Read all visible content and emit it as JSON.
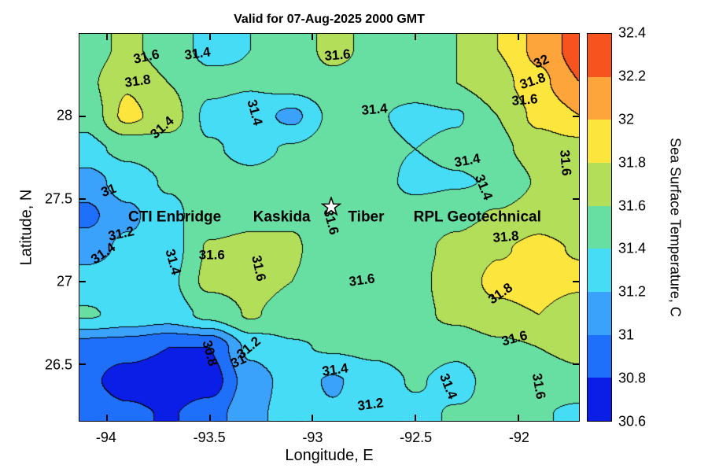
{
  "figure": {
    "background": "#ffffff"
  },
  "chart_data": {
    "type": "heatmap",
    "variant": "filled-contour-map",
    "title": "Valid for 07-Aug-2025 2000 GMT",
    "xlabel": "Longitude, E",
    "ylabel": "Latitude, N",
    "xlim": [
      -94.133,
      -91.706
    ],
    "ylim": [
      26.16,
      28.497
    ],
    "xticks": [
      "-94",
      "-93.5",
      "-93",
      "-92.5",
      "-92"
    ],
    "xtick_values": [
      -94,
      -93.5,
      -93,
      -92.5,
      -92
    ],
    "yticks": [
      "26.5",
      "27",
      "27.5",
      "28"
    ],
    "ytick_values": [
      26.5,
      27,
      27.5,
      28
    ],
    "contour_interval": 0.2,
    "contour_levels": [
      30.8,
      31,
      31.2,
      31.4,
      31.6,
      31.8,
      32,
      32.2
    ],
    "grid_on": false,
    "colorbar": {
      "label": "Sea Surface Temperature, C",
      "min": 30.6,
      "max": 32.4,
      "ticks": [
        "30.6",
        "30.8",
        "31",
        "31.2",
        "31.4",
        "31.6",
        "31.8",
        "32",
        "32.2",
        "32.4"
      ],
      "tick_values": [
        30.6,
        30.8,
        31,
        31.2,
        31.4,
        31.6,
        31.8,
        32,
        32.2,
        32.4
      ],
      "band_colors": [
        "#0a1ee6",
        "#1e6ffa",
        "#3aa2fb",
        "#46dcf5",
        "#67dfa2",
        "#b3de59",
        "#fce53c",
        "#fda43b",
        "#f6531f"
      ]
    },
    "grid": {
      "lon": [
        -94.1,
        -93.9,
        -93.7,
        -93.5,
        -93.3,
        -93.1,
        -92.9,
        -92.7,
        -92.5,
        -92.3,
        -92.1,
        -91.9,
        -91.7
      ],
      "lat": [
        28.4,
        28.2,
        28.0,
        27.8,
        27.6,
        27.4,
        27.2,
        27.0,
        26.8,
        26.6,
        26.4,
        26.2
      ],
      "sst": [
        [
          31.5,
          31.65,
          31.5,
          31.35,
          31.4,
          31.5,
          31.65,
          31.55,
          31.5,
          31.6,
          31.8,
          32.05,
          32.3
        ],
        [
          31.55,
          31.78,
          31.6,
          31.45,
          31.42,
          31.5,
          31.55,
          31.5,
          31.5,
          31.6,
          31.72,
          31.95,
          32.2
        ],
        [
          31.45,
          31.85,
          31.7,
          31.35,
          31.3,
          31.15,
          31.45,
          31.42,
          31.35,
          31.38,
          31.6,
          31.85,
          32.0
        ],
        [
          31.35,
          31.45,
          31.5,
          31.42,
          31.35,
          31.42,
          31.5,
          31.45,
          31.4,
          31.45,
          31.55,
          31.7,
          31.72
        ],
        [
          31.1,
          31.3,
          31.42,
          31.48,
          31.45,
          31.5,
          31.52,
          31.48,
          31.35,
          31.38,
          31.42,
          31.62,
          31.62
        ],
        [
          30.95,
          31.15,
          31.35,
          31.5,
          31.55,
          31.58,
          31.55,
          31.5,
          31.5,
          31.55,
          31.62,
          31.72,
          31.62
        ],
        [
          31.1,
          31.25,
          31.3,
          31.62,
          31.65,
          31.62,
          31.5,
          31.52,
          31.55,
          31.65,
          31.78,
          31.85,
          31.78
        ],
        [
          31.3,
          31.35,
          31.35,
          31.65,
          31.68,
          31.6,
          31.5,
          31.55,
          31.55,
          31.7,
          31.85,
          31.9,
          31.85
        ],
        [
          31.42,
          31.35,
          31.3,
          31.45,
          31.62,
          31.5,
          31.5,
          31.5,
          31.55,
          31.65,
          31.75,
          31.8,
          31.65
        ],
        [
          30.9,
          30.88,
          30.8,
          30.8,
          31.25,
          31.38,
          31.42,
          31.45,
          31.5,
          31.45,
          31.55,
          31.6,
          31.65
        ],
        [
          30.85,
          30.7,
          30.65,
          30.7,
          31.1,
          31.28,
          31.18,
          31.3,
          31.42,
          31.32,
          31.5,
          31.5,
          31.55
        ],
        [
          30.95,
          30.85,
          30.78,
          30.9,
          31.15,
          31.28,
          31.22,
          31.3,
          31.35,
          31.42,
          31.45,
          31.42,
          31.35
        ]
      ]
    },
    "contour_labels": [
      {
        "text": "31.6",
        "lon": -93.81,
        "lat": 28.36,
        "rot": -12
      },
      {
        "text": "31.4",
        "lon": -93.56,
        "lat": 28.38,
        "rot": -8
      },
      {
        "text": "31.6",
        "lon": -92.88,
        "lat": 28.37,
        "rot": -5
      },
      {
        "text": "32",
        "lon": -91.89,
        "lat": 28.33,
        "rot": -25
      },
      {
        "text": "31.8",
        "lon": -93.85,
        "lat": 28.21,
        "rot": -8
      },
      {
        "text": "31.8",
        "lon": -91.93,
        "lat": 28.21,
        "rot": -18
      },
      {
        "text": "31.6",
        "lon": -91.97,
        "lat": 28.1,
        "rot": -5
      },
      {
        "text": "31.4",
        "lon": -93.28,
        "lat": 28.02,
        "rot": 75
      },
      {
        "text": "31.4",
        "lon": -92.7,
        "lat": 28.04,
        "rot": -5
      },
      {
        "text": "31.4",
        "lon": -93.73,
        "lat": 27.93,
        "rot": -42
      },
      {
        "text": "31.4",
        "lon": -92.25,
        "lat": 27.73,
        "rot": -10
      },
      {
        "text": "31.4",
        "lon": -92.17,
        "lat": 27.57,
        "rot": 68
      },
      {
        "text": "31.6",
        "lon": -91.77,
        "lat": 27.72,
        "rot": 85
      },
      {
        "text": "31",
        "lon": -93.99,
        "lat": 27.55,
        "rot": -20
      },
      {
        "text": "31.2",
        "lon": -93.93,
        "lat": 27.29,
        "rot": -12
      },
      {
        "text": "31.4",
        "lon": -94.02,
        "lat": 27.17,
        "rot": -35
      },
      {
        "text": "31.4",
        "lon": -93.68,
        "lat": 27.12,
        "rot": 75
      },
      {
        "text": "31.6",
        "lon": -93.49,
        "lat": 27.16,
        "rot": 0
      },
      {
        "text": "31.6",
        "lon": -93.26,
        "lat": 27.08,
        "rot": 78
      },
      {
        "text": "31.6",
        "lon": -92.76,
        "lat": 27.01,
        "rot": -8
      },
      {
        "text": "31.8",
        "lon": -92.06,
        "lat": 27.27,
        "rot": -5
      },
      {
        "text": "31.8",
        "lon": -92.09,
        "lat": 26.93,
        "rot": -35
      },
      {
        "text": "31.6",
        "lon": -92.02,
        "lat": 26.66,
        "rot": -15
      },
      {
        "text": "30.8",
        "lon": -93.5,
        "lat": 26.57,
        "rot": 75
      },
      {
        "text": "31.2",
        "lon": -93.31,
        "lat": 26.6,
        "rot": -40
      },
      {
        "text": "31",
        "lon": -93.36,
        "lat": 26.52,
        "rot": -25
      },
      {
        "text": "31.4",
        "lon": -92.89,
        "lat": 26.47,
        "rot": -8
      },
      {
        "text": "31.2",
        "lon": -92.72,
        "lat": 26.26,
        "rot": -8
      },
      {
        "text": "31.4",
        "lon": -92.34,
        "lat": 26.37,
        "rot": 68
      },
      {
        "text": "31.6",
        "lon": -91.9,
        "lat": 26.37,
        "rot": 80
      },
      {
        "text": "31.6",
        "lon": -92.91,
        "lat": 27.36,
        "rot": 75
      }
    ],
    "annotations": [
      {
        "text": "CTI Enbridge",
        "lon": -93.67,
        "lat": 27.39
      },
      {
        "text": "Kaskida",
        "lon": -93.15,
        "lat": 27.39
      },
      {
        "text": "Tiber",
        "lon": -92.74,
        "lat": 27.39
      },
      {
        "text": "RPL Geotechnical",
        "lon": -92.2,
        "lat": 27.39
      }
    ],
    "marker": {
      "shape": "star",
      "lon": -92.91,
      "lat": 27.45
    }
  }
}
